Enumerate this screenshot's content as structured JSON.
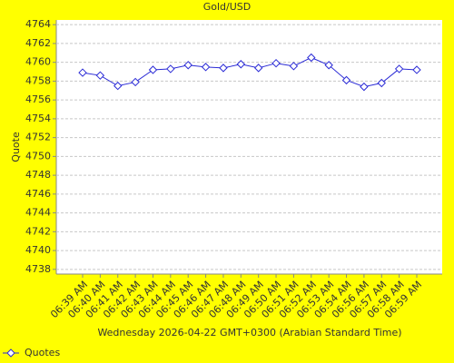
{
  "chart_data": {
    "type": "line",
    "title": "Gold/USD",
    "x_label": "Wednesday 2026-04-22 GMT+0300 (Arabian Standard Time)",
    "y_label": "Quote",
    "categories": [
      "06:39 AM",
      "06:40 AM",
      "06:41 AM",
      "06:42 AM",
      "06:43 AM",
      "06:44 AM",
      "06:45 AM",
      "06:46 AM",
      "06:47 AM",
      "06:48 AM",
      "06:49 AM",
      "06:50 AM",
      "06:51 AM",
      "06:52 AM",
      "06:53 AM",
      "06:54 AM",
      "06:56 AM",
      "06:57 AM",
      "06:58 AM",
      "06:59 AM"
    ],
    "series": [
      {
        "name": "Quotes",
        "color": "#2b2bd6",
        "values": [
          4758.9,
          4758.6,
          4757.5,
          4757.9,
          4759.2,
          4759.3,
          4759.7,
          4759.5,
          4759.4,
          4759.8,
          4759.4,
          4759.9,
          4759.6,
          4760.5,
          4759.7,
          4758.1,
          4757.4,
          4757.8,
          4759.3,
          4759.2
        ]
      }
    ],
    "ylim": [
      4737.5,
      4764.5
    ],
    "yticks": [
      4738,
      4740,
      4742,
      4744,
      4746,
      4748,
      4750,
      4752,
      4754,
      4756,
      4758,
      4760,
      4762,
      4764
    ],
    "grid": true,
    "legend": "bottom-left"
  }
}
